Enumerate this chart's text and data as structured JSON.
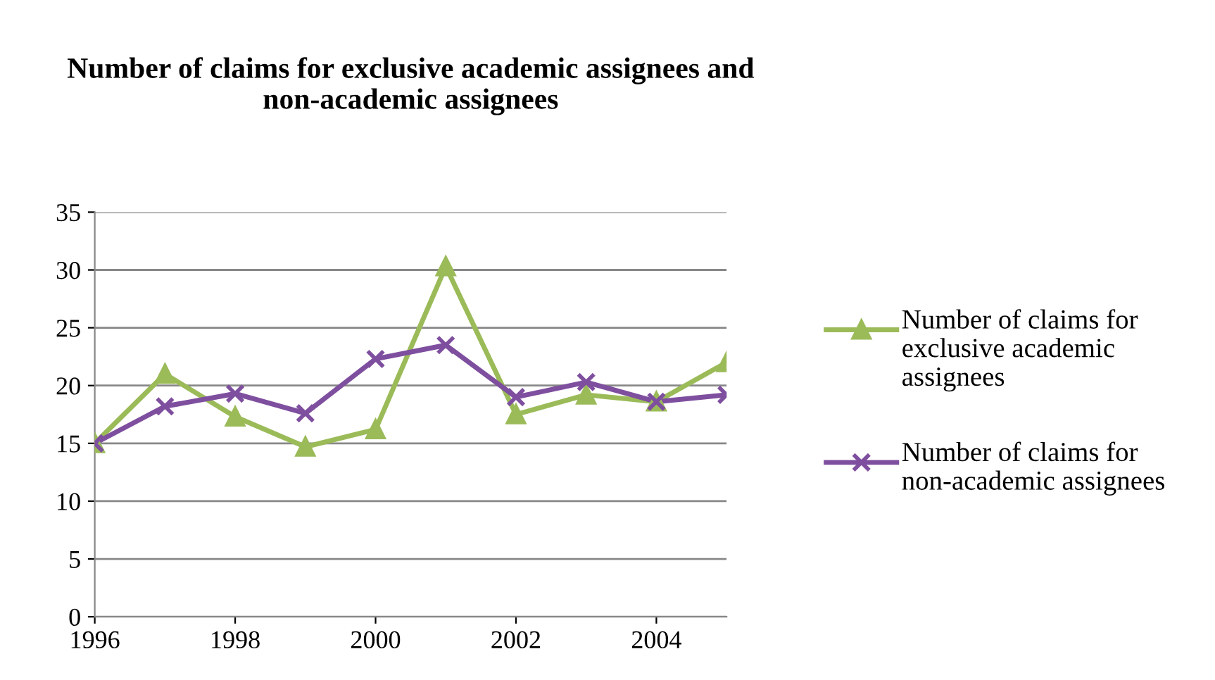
{
  "chart_data": {
    "type": "line",
    "title": "Number of claims for exclusive academic assignees and non-academic assignees",
    "x": [
      1996,
      1997,
      1998,
      1999,
      2000,
      2001,
      2002,
      2003,
      2004,
      2005
    ],
    "series": [
      {
        "name": "Number of claims for exclusive academic assignees",
        "color": "#9bbb59",
        "marker": "triangle",
        "values": [
          15,
          21,
          17.3,
          14.7,
          16.2,
          30.3,
          17.5,
          19.2,
          18.6,
          22
        ]
      },
      {
        "name": "Number of claims for non-academic assignees",
        "color": "#7f4f9f",
        "marker": "cross",
        "values": [
          15,
          18.2,
          19.3,
          17.6,
          22.3,
          23.5,
          19,
          20.3,
          18.6,
          19.2
        ]
      }
    ],
    "xlim": [
      1996,
      2005
    ],
    "xticks": [
      1996,
      1998,
      2000,
      2002,
      2004
    ],
    "ylim": [
      0,
      35
    ],
    "yticks": [
      0,
      5,
      10,
      15,
      20,
      25,
      30,
      35
    ],
    "grid": "y",
    "legend": "right",
    "line_style": "solid"
  }
}
